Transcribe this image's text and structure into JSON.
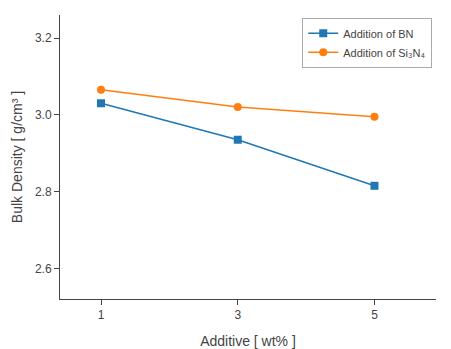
{
  "chart_data": {
    "type": "line",
    "xlabel": "Additive [ wt% ]",
    "ylabel": "Bulk Density [ g/cm³ ]",
    "x": [
      1,
      3,
      5
    ],
    "series": [
      {
        "name": "Addition of BN",
        "values": [
          3.03,
          2.935,
          2.815
        ],
        "marker": "square"
      },
      {
        "name": "Addition of Si₃N₄",
        "values": [
          3.065,
          3.02,
          2.995
        ],
        "marker": "circle"
      }
    ],
    "xlim": [
      0.4,
      5.9
    ],
    "ylim": [
      2.52,
      3.26
    ],
    "xticks": [
      1,
      3,
      5
    ],
    "yticks": [
      2.6,
      2.8,
      {
        "value": 3.0,
        "label": "3.0"
      },
      3.2
    ],
    "grid": false,
    "legend": "upper right"
  }
}
